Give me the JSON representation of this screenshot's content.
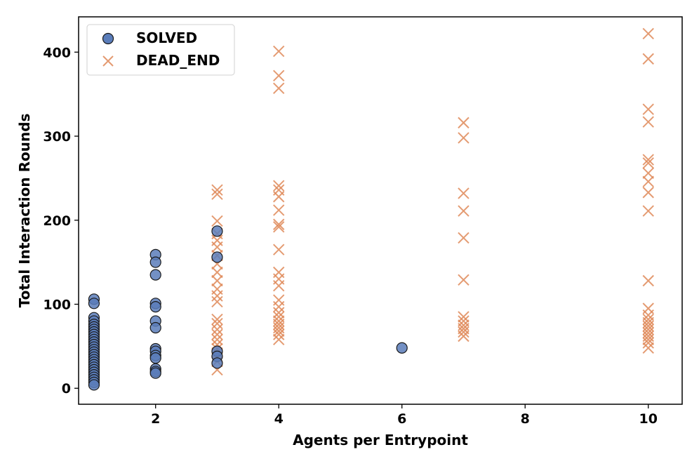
{
  "chart_data": {
    "type": "scatter",
    "title": "",
    "xlabel": "Agents per Entrypoint",
    "ylabel": "Total Interaction Rounds",
    "xlim": [
      0.75,
      10.55
    ],
    "ylim": [
      -19,
      442
    ],
    "xticks": [
      2,
      4,
      6,
      8,
      10
    ],
    "yticks": [
      0,
      100,
      200,
      300,
      400
    ],
    "grid": false,
    "legend_position": "upper-left",
    "series": [
      {
        "name": "SOLVED",
        "marker": "circle",
        "color": "#5a7dba",
        "edge_color": "#1a1a1a",
        "points": [
          [
            1,
            106
          ],
          [
            1,
            101
          ],
          [
            1,
            84
          ],
          [
            1,
            80
          ],
          [
            1,
            76
          ],
          [
            1,
            73
          ],
          [
            1,
            70
          ],
          [
            1,
            67
          ],
          [
            1,
            64
          ],
          [
            1,
            61
          ],
          [
            1,
            58
          ],
          [
            1,
            55
          ],
          [
            1,
            52
          ],
          [
            1,
            49
          ],
          [
            1,
            46
          ],
          [
            1,
            43
          ],
          [
            1,
            40
          ],
          [
            1,
            37
          ],
          [
            1,
            34
          ],
          [
            1,
            31
          ],
          [
            1,
            28
          ],
          [
            1,
            25
          ],
          [
            1,
            22
          ],
          [
            1,
            19
          ],
          [
            1,
            16
          ],
          [
            1,
            13
          ],
          [
            1,
            10
          ],
          [
            1,
            7
          ],
          [
            1,
            4
          ],
          [
            2,
            159
          ],
          [
            2,
            150
          ],
          [
            2,
            135
          ],
          [
            2,
            101
          ],
          [
            2,
            97
          ],
          [
            2,
            80
          ],
          [
            2,
            72
          ],
          [
            2,
            47
          ],
          [
            2,
            44
          ],
          [
            2,
            39
          ],
          [
            2,
            36
          ],
          [
            2,
            23
          ],
          [
            2,
            20
          ],
          [
            2,
            18
          ],
          [
            3,
            187
          ],
          [
            3,
            156
          ],
          [
            3,
            44
          ],
          [
            3,
            38
          ],
          [
            3,
            30
          ],
          [
            6,
            48
          ]
        ]
      },
      {
        "name": "DEAD_END",
        "marker": "x",
        "color": "#e08a5a",
        "points": [
          [
            3,
            236
          ],
          [
            3,
            231
          ],
          [
            3,
            199
          ],
          [
            3,
            184
          ],
          [
            3,
            176
          ],
          [
            3,
            168
          ],
          [
            3,
            158
          ],
          [
            3,
            148
          ],
          [
            3,
            138
          ],
          [
            3,
            128
          ],
          [
            3,
            118
          ],
          [
            3,
            110
          ],
          [
            3,
            103
          ],
          [
            3,
            82
          ],
          [
            3,
            77
          ],
          [
            3,
            70
          ],
          [
            3,
            64
          ],
          [
            3,
            58
          ],
          [
            3,
            52
          ],
          [
            3,
            47
          ],
          [
            3,
            42
          ],
          [
            3,
            37
          ],
          [
            3,
            32
          ],
          [
            3,
            22
          ],
          [
            4,
            401
          ],
          [
            4,
            372
          ],
          [
            4,
            357
          ],
          [
            4,
            241
          ],
          [
            4,
            236
          ],
          [
            4,
            228
          ],
          [
            4,
            212
          ],
          [
            4,
            195
          ],
          [
            4,
            192
          ],
          [
            4,
            165
          ],
          [
            4,
            138
          ],
          [
            4,
            130
          ],
          [
            4,
            122
          ],
          [
            4,
            105
          ],
          [
            4,
            97
          ],
          [
            4,
            90
          ],
          [
            4,
            85
          ],
          [
            4,
            80
          ],
          [
            4,
            76
          ],
          [
            4,
            72
          ],
          [
            4,
            68
          ],
          [
            4,
            64
          ],
          [
            4,
            58
          ],
          [
            7,
            316
          ],
          [
            7,
            298
          ],
          [
            7,
            232
          ],
          [
            7,
            211
          ],
          [
            7,
            179
          ],
          [
            7,
            129
          ],
          [
            7,
            85
          ],
          [
            7,
            80
          ],
          [
            7,
            75
          ],
          [
            7,
            71
          ],
          [
            7,
            67
          ],
          [
            7,
            62
          ],
          [
            10,
            422
          ],
          [
            10,
            392
          ],
          [
            10,
            332
          ],
          [
            10,
            317
          ],
          [
            10,
            272
          ],
          [
            10,
            268
          ],
          [
            10,
            256
          ],
          [
            10,
            246
          ],
          [
            10,
            233
          ],
          [
            10,
            211
          ],
          [
            10,
            128
          ],
          [
            10,
            95
          ],
          [
            10,
            87
          ],
          [
            10,
            82
          ],
          [
            10,
            78
          ],
          [
            10,
            74
          ],
          [
            10,
            70
          ],
          [
            10,
            66
          ],
          [
            10,
            62
          ],
          [
            10,
            58
          ],
          [
            10,
            54
          ],
          [
            10,
            48
          ]
        ]
      }
    ]
  }
}
